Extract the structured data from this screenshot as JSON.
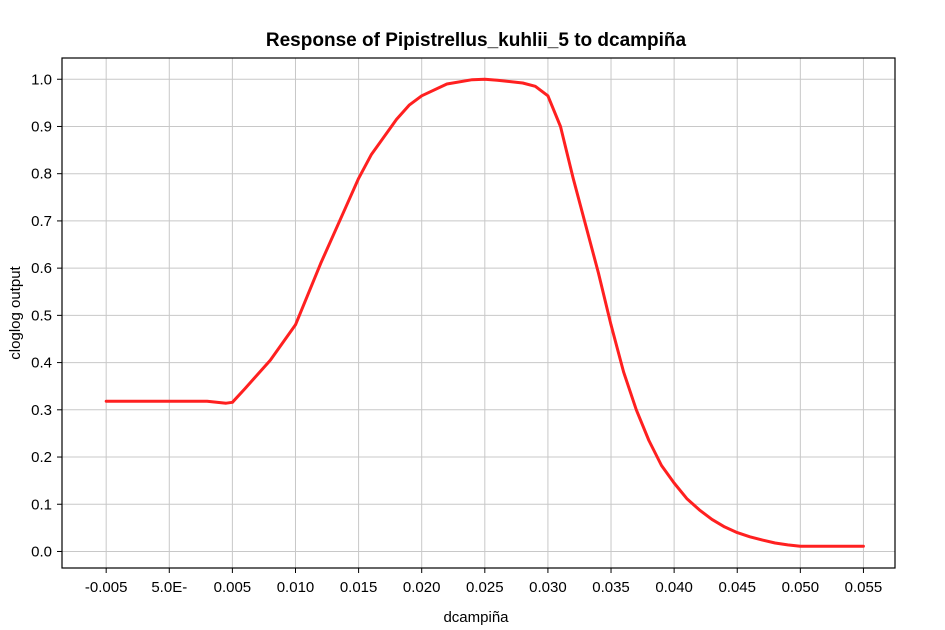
{
  "chart_data": {
    "type": "line",
    "title": "Response of Pipistrellus_kuhlii_5 to dcampiña",
    "xlabel": "dcampiña",
    "ylabel": "cloglog output",
    "xlim": [
      -0.0085,
      0.0575
    ],
    "ylim": [
      -0.035,
      1.045
    ],
    "grid": true,
    "x_ticks": [
      -0.005,
      0.0,
      0.005,
      0.01,
      0.015,
      0.02,
      0.025,
      0.03,
      0.035,
      0.04,
      0.045,
      0.05,
      0.055
    ],
    "x_tick_labels": [
      "-0.005",
      "5.0E-",
      "0.005",
      "0.010",
      "0.015",
      "0.020",
      "0.025",
      "0.030",
      "0.035",
      "0.040",
      "0.045",
      "0.050",
      "0.055"
    ],
    "y_ticks": [
      0.0,
      0.1,
      0.2,
      0.3,
      0.4,
      0.5,
      0.6,
      0.7,
      0.8,
      0.9,
      1.0
    ],
    "y_tick_labels": [
      "0.0",
      "0.1",
      "0.2",
      "0.3",
      "0.4",
      "0.5",
      "0.6",
      "0.7",
      "0.8",
      "0.9",
      "1.0"
    ],
    "series": [
      {
        "color": "#ff2020",
        "x": [
          -0.005,
          0.0,
          0.003,
          0.0045,
          0.005,
          0.006,
          0.008,
          0.01,
          0.012,
          0.014,
          0.015,
          0.016,
          0.018,
          0.019,
          0.02,
          0.022,
          0.024,
          0.025,
          0.026,
          0.028,
          0.029,
          0.03,
          0.031,
          0.032,
          0.033,
          0.034,
          0.035,
          0.036,
          0.037,
          0.038,
          0.039,
          0.04,
          0.041,
          0.042,
          0.043,
          0.044,
          0.045,
          0.046,
          0.047,
          0.048,
          0.049,
          0.05,
          0.052,
          0.055
        ],
        "y": [
          0.318,
          0.318,
          0.318,
          0.314,
          0.316,
          0.345,
          0.405,
          0.48,
          0.61,
          0.73,
          0.79,
          0.84,
          0.915,
          0.945,
          0.965,
          0.99,
          0.999,
          1.0,
          0.998,
          0.992,
          0.985,
          0.965,
          0.9,
          0.79,
          0.69,
          0.59,
          0.48,
          0.38,
          0.3,
          0.235,
          0.182,
          0.145,
          0.112,
          0.088,
          0.068,
          0.052,
          0.04,
          0.031,
          0.024,
          0.018,
          0.014,
          0.011,
          0.011,
          0.011
        ]
      }
    ]
  }
}
